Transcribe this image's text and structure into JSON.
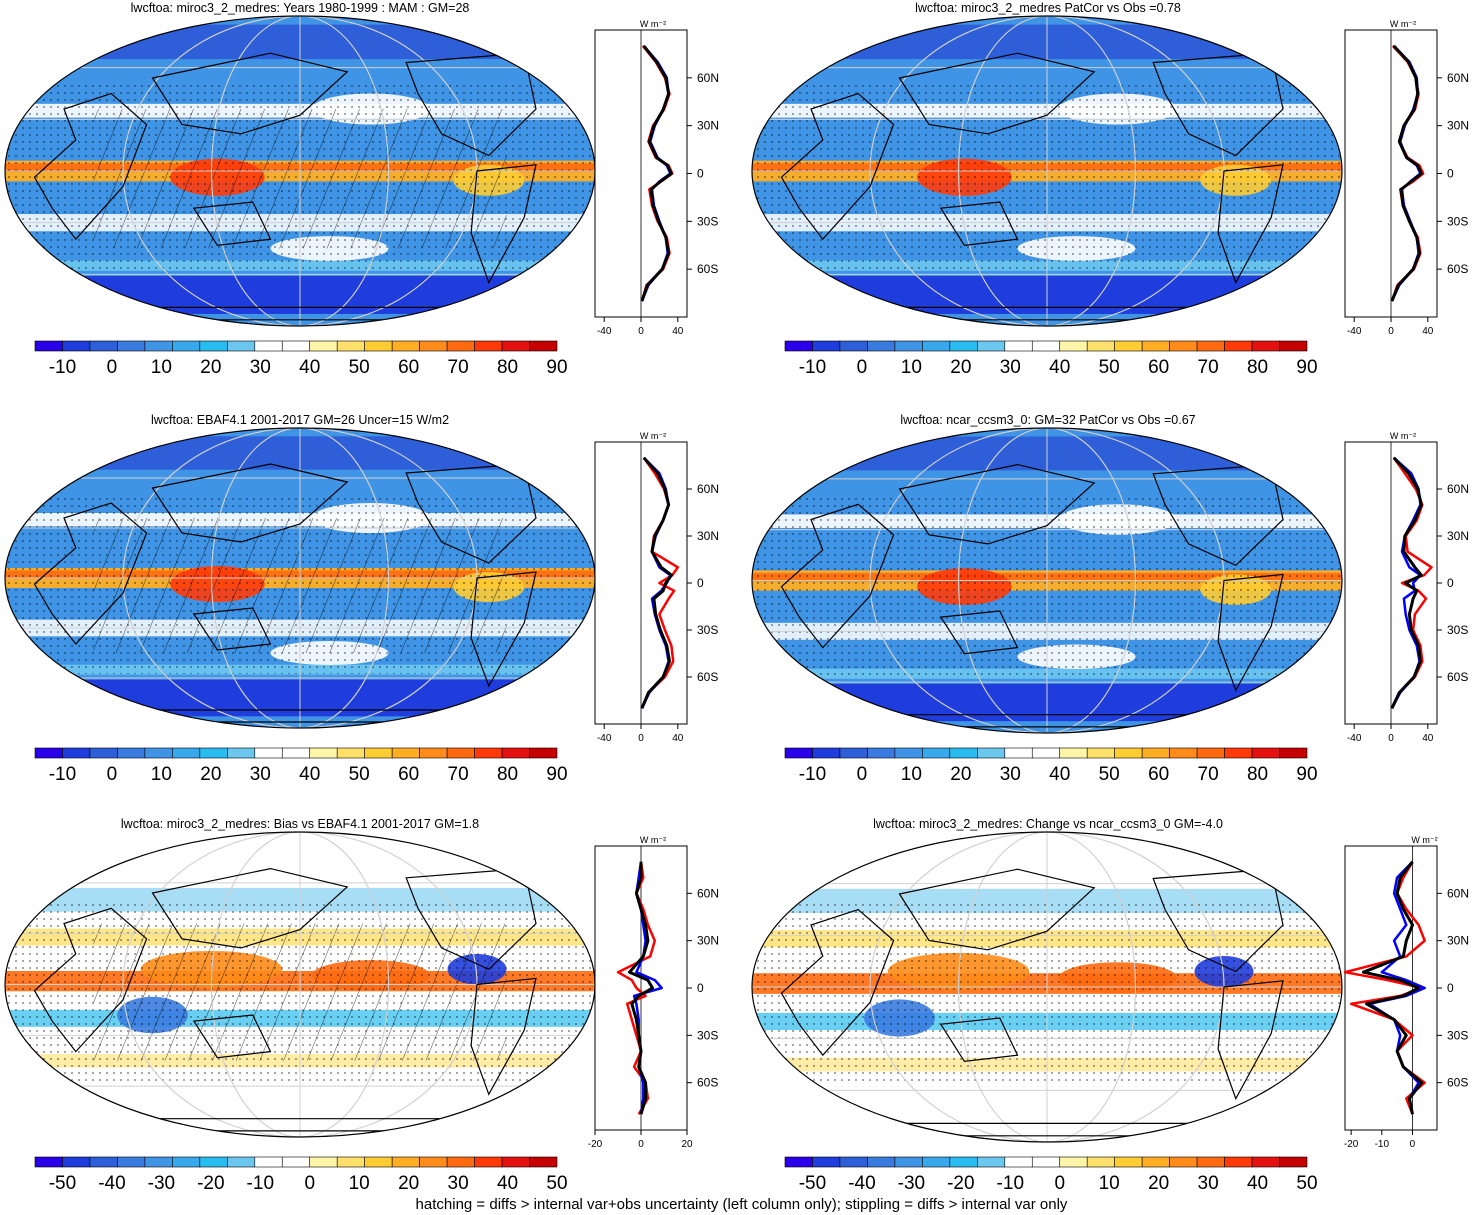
{
  "figure": {
    "footnote": "hatching = diffs > internal var+obs uncertainty (left column only); stippling = diffs > internal var only",
    "profile_unit": "W m⁻²",
    "lat_ticks": [
      "60N",
      "30N",
      "0",
      "30S",
      "60S"
    ]
  },
  "colors": {
    "model": "#ff0000",
    "obs_or_ref": "#0000ff",
    "mean": "#000000"
  },
  "colorbars": {
    "climatology": {
      "colors": [
        "#2a00e8",
        "#1f3ddc",
        "#2e5fd8",
        "#3a7be0",
        "#3f94e6",
        "#38a8ec",
        "#29bcf0",
        "#6cc7ef",
        "#ffffff",
        "#ffffff",
        "#fff5a8",
        "#ffe06a",
        "#ffcc33",
        "#ffae24",
        "#ff8c1a",
        "#ff6a10",
        "#ff3a0a",
        "#e51010",
        "#c40000"
      ],
      "labels": [
        "-10",
        "0",
        "10",
        "20",
        "30",
        "40",
        "50",
        "60",
        "70",
        "80",
        "90"
      ]
    },
    "difference": {
      "colors": [
        "#2a00e8",
        "#1f3ddc",
        "#2e5fd8",
        "#3a7be0",
        "#3f94e6",
        "#38a8ec",
        "#29bcf0",
        "#6cc7ef",
        "#ffffff",
        "#ffffff",
        "#fff5a8",
        "#ffe06a",
        "#ffcc33",
        "#ffae24",
        "#ff8c1a",
        "#ff6a10",
        "#ff3a0a",
        "#e51010",
        "#c40000"
      ],
      "labels": [
        "-50",
        "-40",
        "-30",
        "-20",
        "-10",
        "0",
        "10",
        "20",
        "30",
        "40",
        "50"
      ]
    }
  },
  "chart_data": [
    {
      "type": "map+profile",
      "title": "lwcftoa: miroc3_2_medres: Years 1980-1999 : MAM : GM=28",
      "colorbar": "climatology",
      "profile_xlim": [
        -50,
        50
      ],
      "profile_xticks": [
        "-40",
        "0",
        "40"
      ],
      "series": [
        {
          "name": "model",
          "color": "red",
          "lat": [
            80,
            70,
            60,
            50,
            40,
            30,
            20,
            10,
            5,
            0,
            -5,
            -10,
            -20,
            -30,
            -40,
            -50,
            -60,
            -70,
            -80
          ],
          "values": [
            2,
            16,
            26,
            31,
            25,
            13,
            8,
            16,
            30,
            34,
            22,
            9,
            12,
            18,
            28,
            31,
            24,
            6,
            1
          ]
        },
        {
          "name": "obs",
          "color": "blue",
          "lat": [
            80,
            70,
            60,
            50,
            40,
            30,
            20,
            10,
            5,
            0,
            -5,
            -10,
            -20,
            -30,
            -40,
            -50,
            -60,
            -70,
            -80
          ],
          "values": [
            3,
            18,
            28,
            30,
            24,
            15,
            10,
            18,
            28,
            32,
            20,
            12,
            14,
            20,
            27,
            29,
            23,
            8,
            1
          ]
        },
        {
          "name": "mean",
          "color": "black",
          "lat": [
            80,
            70,
            60,
            50,
            40,
            30,
            20,
            10,
            5,
            0,
            -5,
            -10,
            -20,
            -30,
            -40,
            -50,
            -60,
            -70,
            -80
          ],
          "values": [
            3,
            17,
            27,
            30,
            24,
            14,
            9,
            17,
            29,
            33,
            21,
            11,
            13,
            19,
            27,
            30,
            23,
            7,
            1
          ]
        }
      ]
    },
    {
      "type": "map+profile",
      "title": "lwcftoa: miroc3_2_medres PatCor vs Obs =0.78",
      "colorbar": "climatology",
      "profile_xlim": [
        -50,
        50
      ],
      "profile_xticks": [
        "-40",
        "0",
        "40"
      ],
      "series": [
        {
          "name": "model",
          "color": "red",
          "lat": [
            80,
            70,
            60,
            50,
            40,
            30,
            20,
            10,
            5,
            0,
            -5,
            -10,
            -20,
            -30,
            -40,
            -50,
            -60,
            -70,
            -80
          ],
          "values": [
            2,
            18,
            27,
            30,
            26,
            14,
            9,
            18,
            31,
            35,
            24,
            10,
            13,
            20,
            29,
            32,
            25,
            7,
            1
          ]
        },
        {
          "name": "obs",
          "color": "blue",
          "lat": [
            80,
            70,
            60,
            50,
            40,
            30,
            20,
            10,
            5,
            0,
            -5,
            -10,
            -20,
            -30,
            -40,
            -50,
            -60,
            -70,
            -80
          ],
          "values": [
            3,
            20,
            28,
            29,
            24,
            15,
            10,
            17,
            28,
            32,
            21,
            12,
            14,
            21,
            28,
            30,
            24,
            9,
            1
          ]
        },
        {
          "name": "mean",
          "color": "black",
          "lat": [
            80,
            70,
            60,
            50,
            40,
            30,
            20,
            10,
            5,
            0,
            -5,
            -10,
            -20,
            -30,
            -40,
            -50,
            -60,
            -70,
            -80
          ],
          "values": [
            3,
            19,
            27,
            29,
            25,
            14,
            9,
            17,
            29,
            33,
            22,
            11,
            13,
            20,
            28,
            31,
            24,
            8,
            1
          ]
        }
      ]
    },
    {
      "type": "map+profile",
      "title": "lwcftoa: EBAF4.1 2001-2017 GM=26 Uncer=15 W/m2",
      "colorbar": "climatology",
      "profile_xlim": [
        -50,
        50
      ],
      "profile_xticks": [
        "-40",
        "0",
        "40"
      ],
      "series": [
        {
          "name": "model",
          "color": "red",
          "lat": [
            80,
            70,
            60,
            50,
            40,
            30,
            20,
            10,
            5,
            0,
            -5,
            -10,
            -20,
            -30,
            -40,
            -50,
            -60,
            -70,
            -80
          ],
          "values": [
            3,
            15,
            25,
            30,
            24,
            14,
            12,
            40,
            34,
            20,
            36,
            30,
            20,
            26,
            33,
            35,
            26,
            8,
            1
          ]
        },
        {
          "name": "obs",
          "color": "blue",
          "lat": [
            80,
            70,
            60,
            50,
            40,
            30,
            20,
            10,
            5,
            0,
            -5,
            -10,
            -20,
            -30,
            -40,
            -50,
            -60,
            -70,
            -80
          ],
          "values": [
            3,
            20,
            27,
            30,
            24,
            16,
            12,
            20,
            32,
            28,
            22,
            12,
            15,
            20,
            27,
            30,
            24,
            9,
            1
          ]
        },
        {
          "name": "mean",
          "color": "black",
          "lat": [
            80,
            70,
            60,
            50,
            40,
            30,
            20,
            10,
            5,
            0,
            -5,
            -10,
            -20,
            -30,
            -40,
            -50,
            -60,
            -70,
            -80
          ],
          "values": [
            3,
            18,
            26,
            30,
            24,
            15,
            12,
            22,
            33,
            27,
            24,
            14,
            16,
            21,
            28,
            31,
            24,
            8,
            1
          ]
        }
      ]
    },
    {
      "type": "map+profile",
      "title": "lwcftoa: ncar_ccsm3_0: GM=32 PatCor vs Obs =0.67",
      "colorbar": "climatology",
      "profile_xlim": [
        -50,
        50
      ],
      "profile_xticks": [
        "-40",
        "0",
        "40"
      ],
      "series": [
        {
          "name": "model",
          "color": "red",
          "lat": [
            80,
            70,
            60,
            50,
            40,
            30,
            20,
            10,
            5,
            0,
            -5,
            -10,
            -20,
            -30,
            -40,
            -50,
            -60,
            -70,
            -80
          ],
          "values": [
            3,
            15,
            27,
            34,
            28,
            16,
            18,
            44,
            36,
            12,
            30,
            38,
            26,
            24,
            32,
            34,
            26,
            9,
            1
          ]
        },
        {
          "name": "obs",
          "color": "blue",
          "lat": [
            80,
            70,
            60,
            50,
            40,
            30,
            20,
            10,
            5,
            0,
            -5,
            -10,
            -20,
            -30,
            -40,
            -50,
            -60,
            -70,
            -80
          ],
          "values": [
            3,
            22,
            30,
            32,
            24,
            15,
            12,
            20,
            32,
            24,
            26,
            14,
            16,
            20,
            28,
            31,
            25,
            10,
            1
          ]
        },
        {
          "name": "mean",
          "color": "black",
          "lat": [
            80,
            70,
            60,
            50,
            40,
            30,
            20,
            10,
            5,
            0,
            -5,
            -10,
            -20,
            -30,
            -40,
            -50,
            -60,
            -70,
            -80
          ],
          "values": [
            3,
            19,
            29,
            33,
            26,
            15,
            14,
            26,
            33,
            16,
            28,
            24,
            20,
            22,
            30,
            32,
            25,
            9,
            1
          ]
        }
      ]
    },
    {
      "type": "map+profile",
      "title": "lwcftoa: miroc3_2_medres: Bias vs EBAF4.1 2001-2017 GM=1.8",
      "colorbar": "difference",
      "profile_xlim": [
        -20,
        20
      ],
      "profile_xticks": [
        "-20",
        "0",
        "20"
      ],
      "series": [
        {
          "name": "model",
          "color": "red",
          "lat": [
            80,
            70,
            60,
            50,
            40,
            30,
            20,
            10,
            5,
            0,
            -5,
            -10,
            -20,
            -30,
            -40,
            -50,
            -60,
            -70,
            -80
          ],
          "values": [
            0,
            1,
            -2,
            1,
            3,
            6,
            4,
            -10,
            -4,
            -2,
            2,
            -6,
            -4,
            -2,
            0,
            -3,
            2,
            3,
            -1
          ]
        },
        {
          "name": "obs",
          "color": "blue",
          "lat": [
            80,
            70,
            60,
            50,
            40,
            30,
            20,
            10,
            5,
            0,
            -5,
            -10,
            -20,
            -30,
            -40,
            -50,
            -60,
            -70,
            -80
          ],
          "values": [
            0,
            -1,
            -2,
            0,
            1,
            2,
            1,
            -2,
            6,
            9,
            -3,
            -2,
            -1,
            -1,
            0,
            -1,
            1,
            1,
            0
          ]
        },
        {
          "name": "mean",
          "color": "black",
          "lat": [
            80,
            70,
            60,
            50,
            40,
            30,
            20,
            10,
            5,
            0,
            -5,
            -10,
            -20,
            -30,
            -40,
            -50,
            -60,
            -70,
            -80
          ],
          "values": [
            0,
            0,
            -2,
            0,
            2,
            3,
            1,
            -5,
            3,
            5,
            -1,
            -4,
            -2,
            -1,
            0,
            -1,
            2,
            2,
            0
          ]
        }
      ]
    },
    {
      "type": "map+profile",
      "title": "lwcftoa: miroc3_2_medres: Change vs ncar_ccsm3_0 GM=-4.0",
      "colorbar": "difference",
      "profile_xlim": [
        -22,
        8
      ],
      "profile_xticks": [
        "-20",
        "-10",
        "0"
      ],
      "series": [
        {
          "name": "model",
          "color": "red",
          "lat": [
            80,
            70,
            60,
            50,
            40,
            30,
            20,
            10,
            5,
            0,
            -5,
            -10,
            -20,
            -30,
            -40,
            -50,
            -60,
            -70,
            -80
          ],
          "values": [
            0,
            -3,
            -5,
            -2,
            2,
            4,
            -2,
            -22,
            -8,
            3,
            -4,
            -20,
            -6,
            0,
            -5,
            -3,
            4,
            -2,
            0
          ]
        },
        {
          "name": "obs",
          "color": "blue",
          "lat": [
            80,
            70,
            60,
            50,
            40,
            30,
            20,
            10,
            5,
            0,
            -5,
            -10,
            -20,
            -30,
            -40,
            -50,
            -60,
            -70,
            -80
          ],
          "values": [
            0,
            -5,
            -6,
            -4,
            -2,
            -6,
            -4,
            -10,
            -2,
            4,
            -2,
            -14,
            -6,
            -4,
            -5,
            -3,
            2,
            -1,
            0
          ]
        },
        {
          "name": "mean",
          "color": "black",
          "lat": [
            80,
            70,
            60,
            50,
            40,
            30,
            20,
            10,
            5,
            0,
            -5,
            -10,
            -20,
            -30,
            -40,
            -50,
            -60,
            -70,
            -80
          ],
          "values": [
            0,
            -4,
            -5,
            -3,
            0,
            -2,
            -3,
            -16,
            -4,
            2,
            -3,
            -15,
            -6,
            -2,
            -5,
            -3,
            3,
            -1,
            0
          ]
        }
      ]
    }
  ]
}
